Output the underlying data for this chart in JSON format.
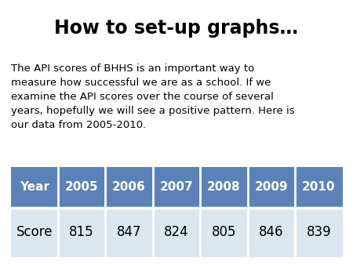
{
  "title": "How to set-up graphs…",
  "body_text": "The API scores of BHHS is an important way to\nmeasure how successful we are as a school. If we\nexamine the API scores over the course of several\nyears, hopefully we will see a positive pattern. Here is\nour data from 2005-2010.",
  "table_headers": [
    "Year",
    "2005",
    "2006",
    "2007",
    "2008",
    "2009",
    "2010"
  ],
  "table_row_label": "Score",
  "table_values": [
    815,
    847,
    824,
    805,
    846,
    839
  ],
  "header_bg_color": "#5b82b8",
  "header_text_color": "#ffffff",
  "row_bg_color": "#dce6f1",
  "row_text_color": "#000000",
  "title_fontsize": 17,
  "body_fontsize": 9.5,
  "table_header_fontsize": 11,
  "table_row_fontsize": 12,
  "background_color": "#ffffff"
}
